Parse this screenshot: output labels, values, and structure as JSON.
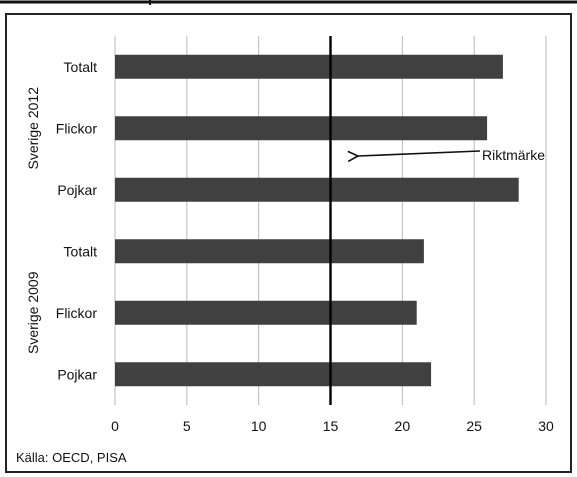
{
  "chart_data": {
    "type": "bar",
    "orientation": "horizontal",
    "groups": [
      {
        "label": "Sverige 2012",
        "categories": [
          "Totalt",
          "Flickor",
          "Pojkar"
        ],
        "values": [
          27,
          25.9,
          28.1
        ]
      },
      {
        "label": "Sverige 2009",
        "categories": [
          "Totalt",
          "Flickor",
          "Pojkar"
        ],
        "values": [
          21.5,
          21,
          22
        ]
      }
    ],
    "xlim": [
      0,
      30
    ],
    "xticks": [
      0,
      5,
      10,
      15,
      20,
      25,
      30
    ],
    "grid": true,
    "reference_line": {
      "value": 15,
      "label": "Riktmärke"
    },
    "bar_color": "#404040",
    "source": "Källa: OECD, PISA"
  }
}
